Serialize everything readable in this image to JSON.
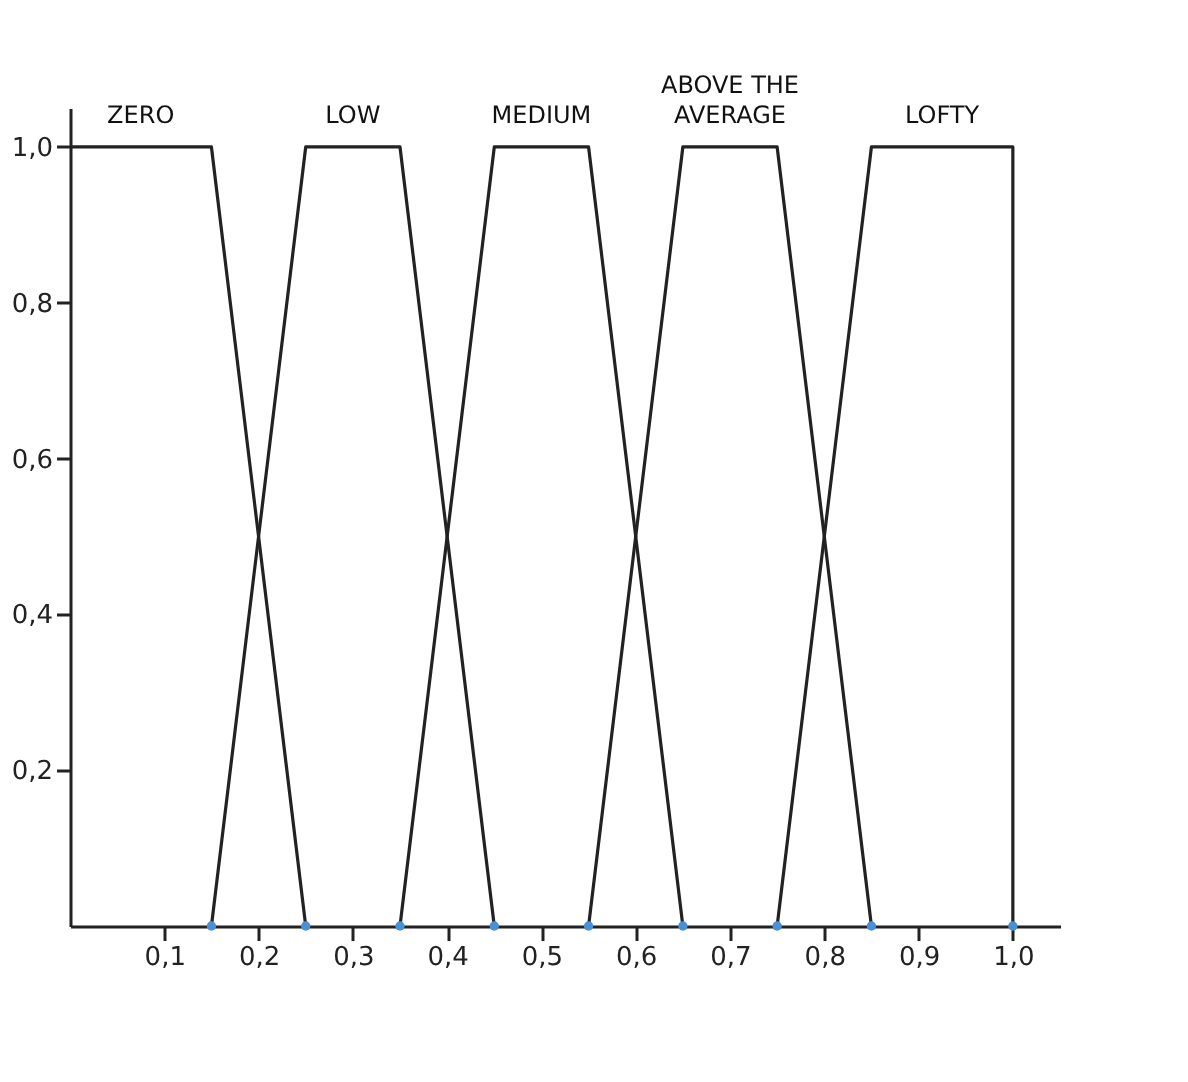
{
  "chart_data": {
    "type": "line",
    "series": [
      {
        "name": "ZERO",
        "color": "#222222",
        "x": [
          0,
          0.15,
          0.25
        ],
        "values": [
          1,
          1,
          0
        ]
      },
      {
        "name": "LOW",
        "color": "#222222",
        "x": [
          0.15,
          0.25,
          0.35,
          0.45
        ],
        "values": [
          0,
          1,
          1,
          0
        ]
      },
      {
        "name": "MEDIUM",
        "color": "#222222",
        "x": [
          0.35,
          0.45,
          0.55,
          0.65
        ],
        "values": [
          0,
          1,
          1,
          0
        ]
      },
      {
        "name": "ABOVE THE AVERAGE",
        "color": "#222222",
        "x": [
          0.55,
          0.65,
          0.75,
          0.85
        ],
        "values": [
          0,
          1,
          1,
          0
        ]
      },
      {
        "name": "LOFTY",
        "color": "#222222",
        "x": [
          0.75,
          0.85,
          1.0,
          1.0
        ],
        "values": [
          0,
          1,
          1,
          0
        ]
      },
      {
        "type": "scatter",
        "marker": "circle",
        "color": "#4a90d9",
        "x": [
          0.15,
          0.25,
          0.35,
          0.45,
          0.55,
          0.65,
          0.75,
          0.85,
          1.0
        ],
        "values": [
          0,
          0,
          0,
          0,
          0,
          0,
          0,
          0,
          0
        ]
      }
    ],
    "xlim": [
      0,
      1.05
    ],
    "ylim": [
      0,
      1.05
    ],
    "xticks": [
      {
        "value": 0.1,
        "label": "0,1"
      },
      {
        "value": 0.2,
        "label": "0,2"
      },
      {
        "value": 0.3,
        "label": "0,3"
      },
      {
        "value": 0.4,
        "label": "0,4"
      },
      {
        "value": 0.5,
        "label": "0,5"
      },
      {
        "value": 0.6,
        "label": "0,6"
      },
      {
        "value": 0.7,
        "label": "0,7"
      },
      {
        "value": 0.8,
        "label": "0,8"
      },
      {
        "value": 0.9,
        "label": "0,9"
      },
      {
        "value": 1.0,
        "label": "1,0"
      }
    ],
    "yticks": [
      {
        "value": 0.2,
        "label": "0,2"
      },
      {
        "value": 0.4,
        "label": "0,4"
      },
      {
        "value": 0.6,
        "label": "0,6"
      },
      {
        "value": 0.8,
        "label": "0,8"
      },
      {
        "value": 1.0,
        "label": "1,0"
      }
    ],
    "marker": "none",
    "line_style": "solid"
  }
}
